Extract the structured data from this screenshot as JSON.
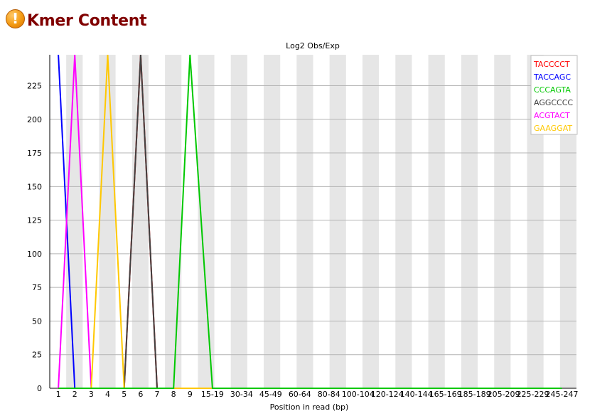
{
  "report": {
    "status_icon": "warning-icon",
    "status_glyph": "!",
    "title": "Kmer Content"
  },
  "chart_data": {
    "type": "line",
    "title": "Log2 Obs/Exp",
    "xlabel": "Position in read (bp)",
    "ylabel": "",
    "ylim": [
      0,
      248
    ],
    "yticks": [
      0,
      25,
      50,
      75,
      100,
      125,
      150,
      175,
      200,
      225
    ],
    "categories": [
      "1",
      "2",
      "3",
      "4",
      "5",
      "6",
      "7",
      "8",
      "9",
      "15-19",
      "30-34",
      "45-49",
      "60-64",
      "80-84",
      "100-104",
      "120-124",
      "140-144",
      "165-169",
      "185-189",
      "205-209",
      "225-229",
      "245-247"
    ],
    "grid": true,
    "alternating_column_shading": true,
    "legend_position": "top-right",
    "series": [
      {
        "name": "TACCCCT",
        "color": "#ff0000",
        "peak_at": "6",
        "peak_value": 248
      },
      {
        "name": "TACCAGC",
        "color": "#0000ff",
        "peak_at": "1",
        "peak_value": 248
      },
      {
        "name": "CCCAGTA",
        "color": "#00c800",
        "peak_at": "9",
        "peak_value": 248
      },
      {
        "name": "AGGCCCC",
        "color": "#404040",
        "peak_at": "6",
        "peak_value": 248
      },
      {
        "name": "ACGTACT",
        "color": "#ff00ff",
        "peak_at": "2",
        "peak_value": 248
      },
      {
        "name": "GAAGGAT",
        "color": "#ffc800",
        "peak_at": "4",
        "peak_value": 248
      }
    ]
  }
}
